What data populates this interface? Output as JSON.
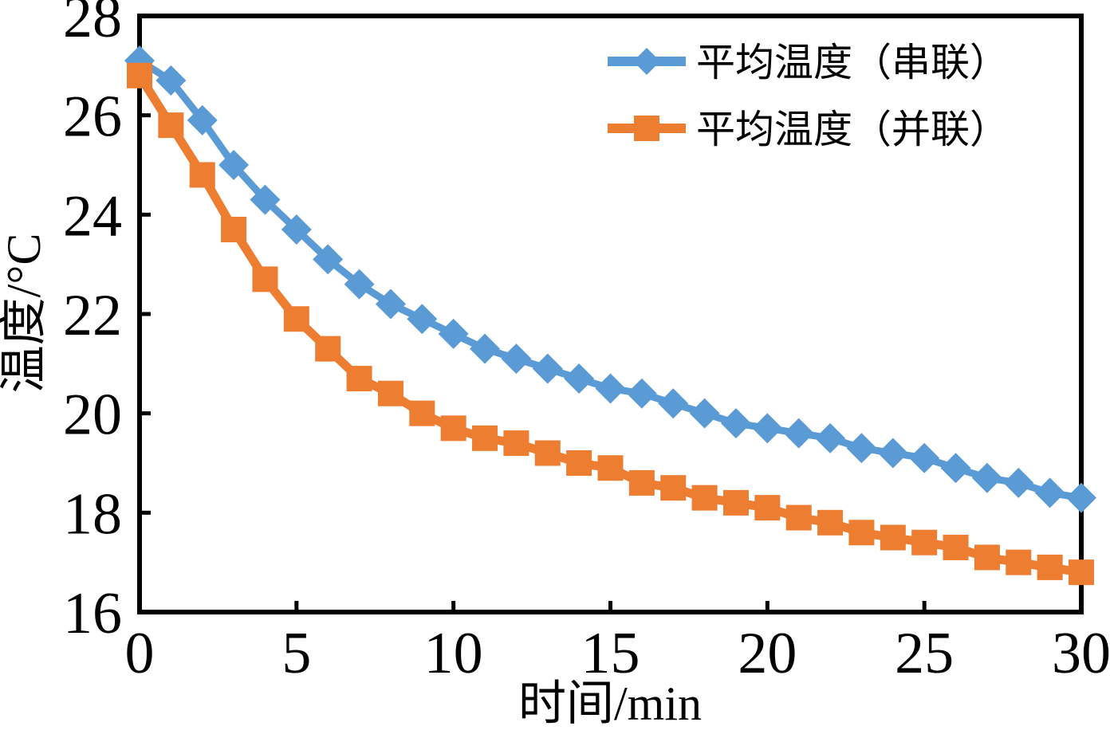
{
  "chart_data": {
    "type": "line",
    "title": "",
    "xlabel": "时间/min",
    "ylabel": "温度/°C",
    "xlim": [
      0,
      30
    ],
    "ylim": [
      16,
      28
    ],
    "xticks": [
      0,
      5,
      10,
      15,
      20,
      25,
      30
    ],
    "yticks": [
      16,
      18,
      20,
      22,
      24,
      26,
      28
    ],
    "grid": false,
    "legend_position": "top-right-inside",
    "axis_color": "#000000",
    "background_color": "#ffffff",
    "x": [
      0,
      1,
      2,
      3,
      4,
      5,
      6,
      7,
      8,
      9,
      10,
      11,
      12,
      13,
      14,
      15,
      16,
      17,
      18,
      19,
      20,
      21,
      22,
      23,
      24,
      25,
      26,
      27,
      28,
      29,
      30
    ],
    "series": [
      {
        "name": "平均温度（串联）",
        "color": "#5B9BD5",
        "marker": "diamond",
        "line_width": 9,
        "values": [
          27.1,
          26.7,
          25.9,
          25.0,
          24.3,
          23.7,
          23.1,
          22.6,
          22.2,
          21.9,
          21.6,
          21.3,
          21.1,
          20.9,
          20.7,
          20.5,
          20.4,
          20.2,
          20.0,
          19.8,
          19.7,
          19.6,
          19.5,
          19.3,
          19.2,
          19.1,
          18.9,
          18.7,
          18.6,
          18.4,
          18.3
        ]
      },
      {
        "name": "平均温度（并联）",
        "color": "#ED7D31",
        "marker": "square",
        "line_width": 11,
        "values": [
          26.8,
          25.8,
          24.8,
          23.7,
          22.7,
          21.9,
          21.3,
          20.7,
          20.4,
          20.0,
          19.7,
          19.5,
          19.4,
          19.2,
          19.0,
          18.9,
          18.6,
          18.5,
          18.3,
          18.2,
          18.1,
          17.9,
          17.8,
          17.6,
          17.5,
          17.4,
          17.3,
          17.1,
          17.0,
          16.9,
          16.8
        ]
      }
    ]
  }
}
